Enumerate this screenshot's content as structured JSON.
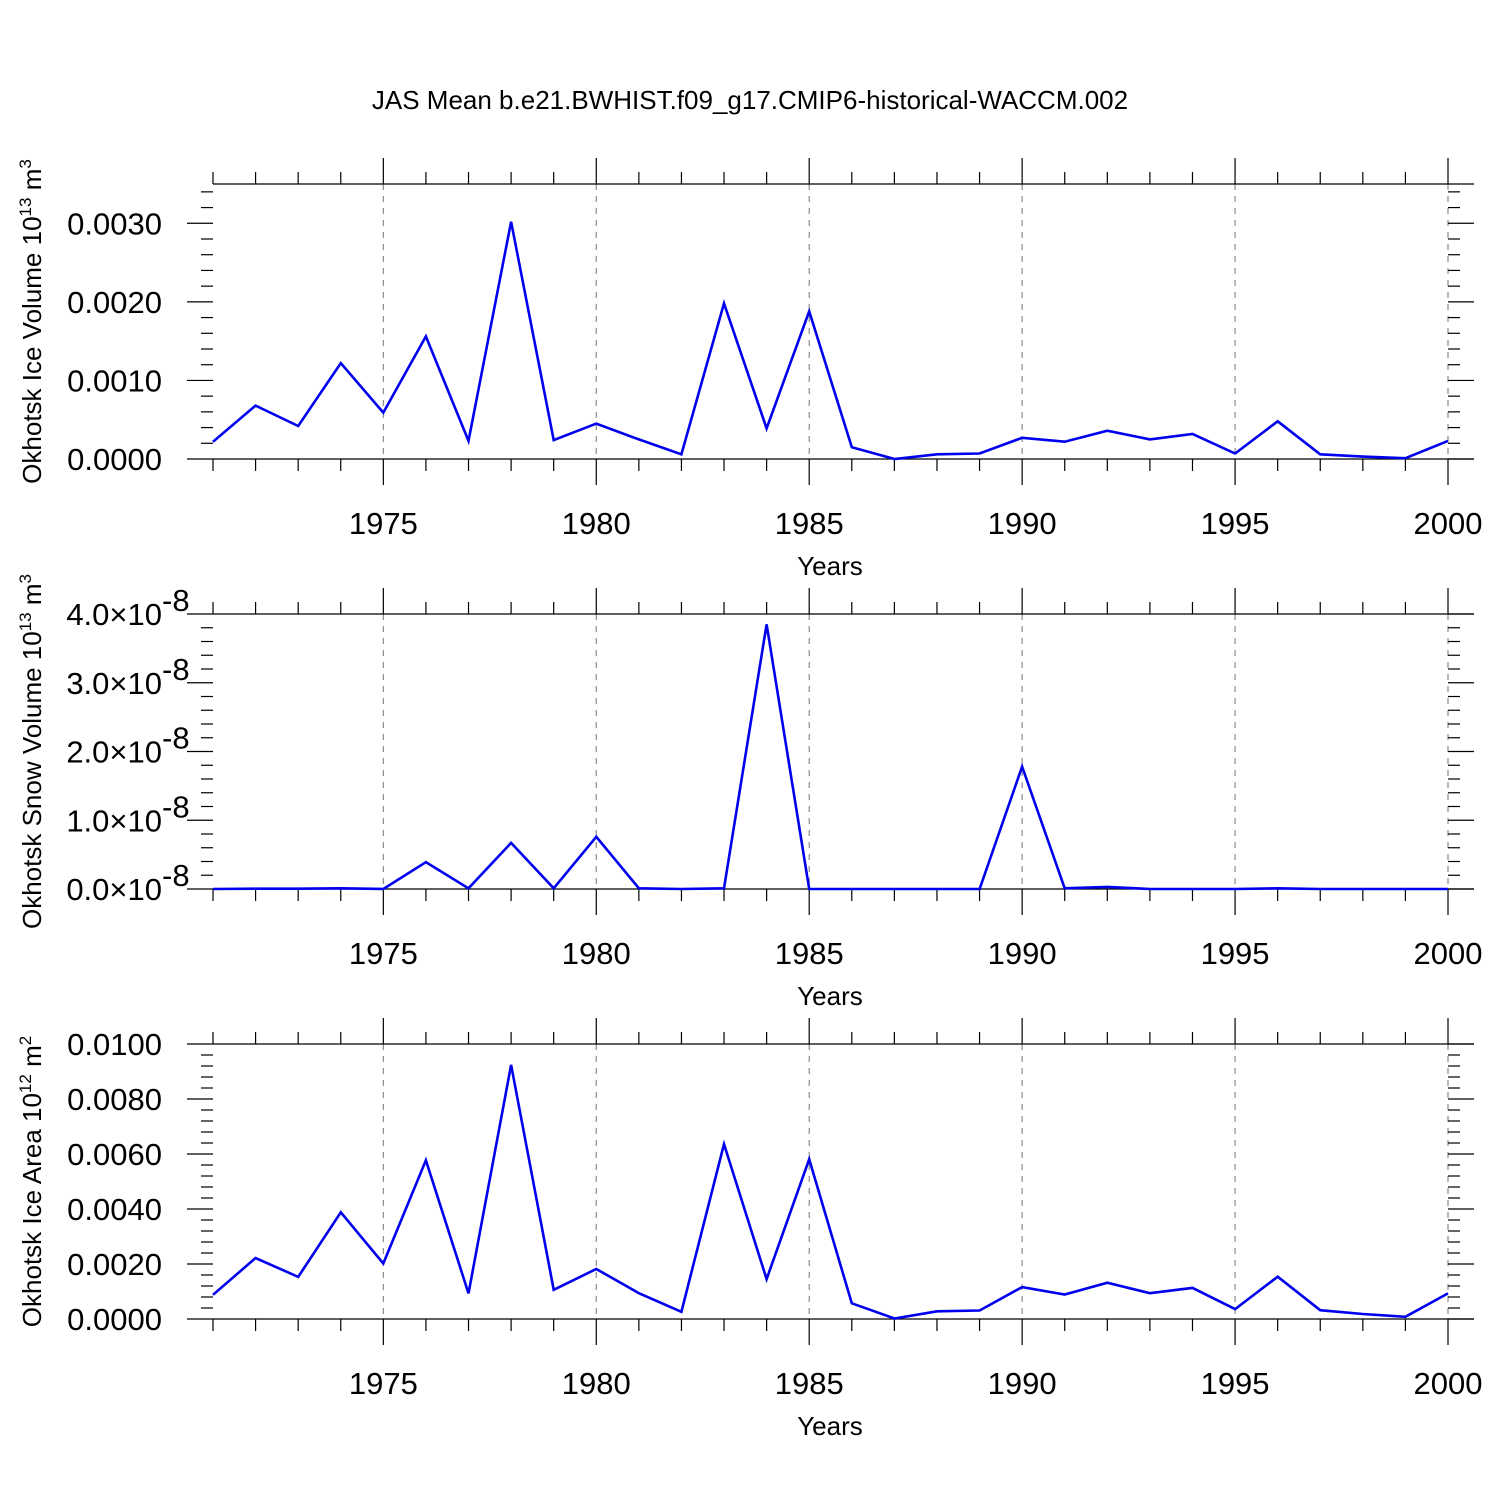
{
  "title": "JAS Mean b.e21.BWHIST.f09_g17.CMIP6-historical-WACCM.002",
  "colors": {
    "line": "#0000ee",
    "axis": "#000000",
    "grid": "#8c8c8c"
  },
  "chart_data": [
    {
      "type": "line",
      "xlabel": "Years",
      "ylabel": "Okhotsk Ice Volume 10",
      "ylabel_sup1": "13",
      "ylabel_unit": " m",
      "ylabel_sup2": "3",
      "xlim": [
        1971,
        2000
      ],
      "ylim": [
        0,
        0.0035
      ],
      "xticks": [
        1975,
        1980,
        1985,
        1990,
        1995,
        2000
      ],
      "xtick_labels": [
        "1975",
        "1980",
        "1985",
        "1990",
        "1995",
        "2000"
      ],
      "yticks": [
        0,
        0.001,
        0.002,
        0.003
      ],
      "ytick_labels": [
        "0.0000",
        "0.0010",
        "0.0020",
        "0.0030"
      ],
      "grid": "vertical dashed at major x ticks",
      "x": [
        1971,
        1972,
        1973,
        1974,
        1975,
        1976,
        1977,
        1978,
        1979,
        1980,
        1981,
        1982,
        1983,
        1984,
        1985,
        1986,
        1987,
        1988,
        1989,
        1990,
        1991,
        1992,
        1993,
        1994,
        1995,
        1996,
        1997,
        1998,
        1999,
        2000
      ],
      "series": [
        {
          "values": [
            0.00022,
            0.00068,
            0.00042,
            0.00122,
            0.00059,
            0.00156,
            0.00023,
            0.00302,
            0.00024,
            0.00045,
            0.00025,
            6e-05,
            0.00198,
            0.00039,
            0.00188,
            0.00015,
            0.0,
            6e-05,
            7e-05,
            0.00027,
            0.00022,
            0.00036,
            0.00025,
            0.00032,
            7e-05,
            0.00048,
            6e-05,
            3e-05,
            1e-05,
            0.00023
          ]
        }
      ]
    },
    {
      "type": "line",
      "xlabel": "Years",
      "ylabel": "Okhotsk Snow Volume 10",
      "ylabel_sup1": "13",
      "ylabel_unit": " m",
      "ylabel_sup2": "3",
      "xlim": [
        1971,
        2000
      ],
      "ylim": [
        0,
        4e-08
      ],
      "xticks": [
        1975,
        1980,
        1985,
        1990,
        1995,
        2000
      ],
      "xtick_labels": [
        "1975",
        "1980",
        "1985",
        "1990",
        "1995",
        "2000"
      ],
      "yticks": [
        0,
        1e-08,
        2e-08,
        3e-08,
        4e-08
      ],
      "ytick_mantissas": [
        "0.0",
        "1.0",
        "2.0",
        "3.0",
        "4.0"
      ],
      "ytick_times": "×10",
      "ytick_exponent": "-8",
      "grid": "vertical dashed at major x ticks",
      "x": [
        1971,
        1972,
        1973,
        1974,
        1975,
        1976,
        1977,
        1978,
        1979,
        1980,
        1981,
        1982,
        1983,
        1984,
        1985,
        1986,
        1987,
        1988,
        1989,
        1990,
        1991,
        1992,
        1993,
        1994,
        1995,
        1996,
        1997,
        1998,
        1999,
        2000
      ],
      "series": [
        {
          "values": [
            0.0,
            5e-11,
            5e-11,
            1e-10,
            0.0,
            3.9e-09,
            1e-10,
            6.7e-09,
            1e-10,
            7.6e-09,
            1e-10,
            0.0,
            1e-10,
            3.85e-08,
            0.0,
            0.0,
            0.0,
            0.0,
            0.0,
            1.78e-08,
            1e-10,
            3e-10,
            0.0,
            0.0,
            0.0,
            1e-10,
            0.0,
            0.0,
            0.0,
            0.0
          ]
        }
      ]
    },
    {
      "type": "line",
      "xlabel": "Years",
      "ylabel": "Okhotsk Ice Area 10",
      "ylabel_sup1": "12",
      "ylabel_unit": " m",
      "ylabel_sup2": "2",
      "xlim": [
        1971,
        2000
      ],
      "ylim": [
        0,
        0.01
      ],
      "xticks": [
        1975,
        1980,
        1985,
        1990,
        1995,
        2000
      ],
      "xtick_labels": [
        "1975",
        "1980",
        "1985",
        "1990",
        "1995",
        "2000"
      ],
      "yticks": [
        0,
        0.002,
        0.004,
        0.006,
        0.008,
        0.01
      ],
      "ytick_labels": [
        "0.0000",
        "0.0020",
        "0.0040",
        "0.0060",
        "0.0080",
        "0.0100"
      ],
      "grid": "vertical dashed at major x ticks",
      "x": [
        1971,
        1972,
        1973,
        1974,
        1975,
        1976,
        1977,
        1978,
        1979,
        1980,
        1981,
        1982,
        1983,
        1984,
        1985,
        1986,
        1987,
        1988,
        1989,
        1990,
        1991,
        1992,
        1993,
        1994,
        1995,
        1996,
        1997,
        1998,
        1999,
        2000
      ],
      "series": [
        {
          "values": [
            0.00088,
            0.00222,
            0.00153,
            0.00388,
            0.00202,
            0.00577,
            0.00093,
            0.00924,
            0.00106,
            0.00182,
            0.00094,
            0.00026,
            0.00636,
            0.00145,
            0.00581,
            0.00057,
            2e-05,
            0.00028,
            0.00031,
            0.00116,
            0.00089,
            0.00132,
            0.00094,
            0.00113,
            0.00036,
            0.00154,
            0.00032,
            0.00018,
            8e-05,
            0.00093
          ]
        }
      ]
    }
  ]
}
